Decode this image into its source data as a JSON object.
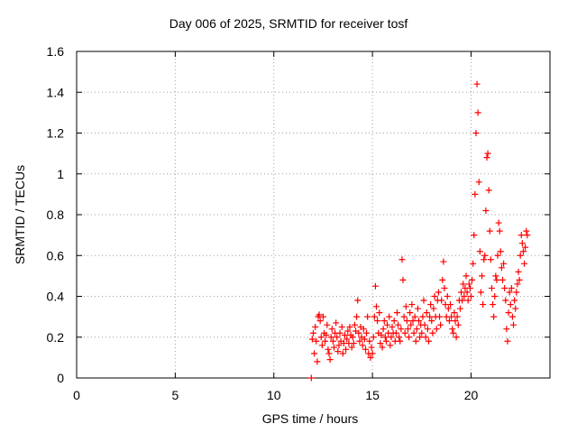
{
  "chart_data": {
    "type": "scatter",
    "title": "Day 006 of 2025, SRMTID for receiver tosf",
    "xlabel": "GPS time / hours",
    "ylabel": "SRMTID / TECUs",
    "xlim": [
      0,
      24
    ],
    "ylim": [
      0,
      1.6
    ],
    "xticks": [
      0,
      5,
      10,
      15,
      20
    ],
    "yticks": [
      0,
      0.2,
      0.4,
      0.6,
      0.8,
      1,
      1.2,
      1.4,
      1.6
    ],
    "xtick_labels": [
      "0",
      "5",
      "10",
      "15",
      "20"
    ],
    "ytick_labels": [
      "0",
      "0.2",
      "0.4",
      "0.6",
      "0.8",
      "1",
      "1.2",
      "1.4",
      "1.6"
    ],
    "grid": true,
    "marker": "+",
    "color": "#ff0000",
    "series": [
      {
        "name": "tosf",
        "points": [
          [
            11.9,
            0.0
          ],
          [
            11.95,
            0.19
          ],
          [
            12.0,
            0.22
          ],
          [
            12.05,
            0.12
          ],
          [
            12.1,
            0.25
          ],
          [
            12.15,
            0.18
          ],
          [
            12.2,
            0.08
          ],
          [
            12.25,
            0.3
          ],
          [
            12.3,
            0.31
          ],
          [
            12.35,
            0.28
          ],
          [
            12.4,
            0.2
          ],
          [
            12.45,
            0.16
          ],
          [
            12.5,
            0.3
          ],
          [
            12.55,
            0.22
          ],
          [
            12.6,
            0.18
          ],
          [
            12.65,
            0.21
          ],
          [
            12.7,
            0.26
          ],
          [
            12.75,
            0.14
          ],
          [
            12.8,
            0.12
          ],
          [
            12.85,
            0.09
          ],
          [
            12.9,
            0.2
          ],
          [
            12.95,
            0.24
          ],
          [
            13.0,
            0.18
          ],
          [
            13.05,
            0.15
          ],
          [
            13.1,
            0.22
          ],
          [
            13.15,
            0.27
          ],
          [
            13.2,
            0.2
          ],
          [
            13.25,
            0.13
          ],
          [
            13.3,
            0.16
          ],
          [
            13.35,
            0.22
          ],
          [
            13.4,
            0.18
          ],
          [
            13.45,
            0.25
          ],
          [
            13.5,
            0.12
          ],
          [
            13.55,
            0.17
          ],
          [
            13.6,
            0.21
          ],
          [
            13.65,
            0.14
          ],
          [
            13.7,
            0.19
          ],
          [
            13.75,
            0.23
          ],
          [
            13.8,
            0.17
          ],
          [
            13.85,
            0.25
          ],
          [
            13.9,
            0.21
          ],
          [
            13.95,
            0.15
          ],
          [
            14.0,
            0.2
          ],
          [
            14.05,
            0.17
          ],
          [
            14.1,
            0.26
          ],
          [
            14.15,
            0.23
          ],
          [
            14.2,
            0.3
          ],
          [
            14.25,
            0.38
          ],
          [
            14.3,
            0.22
          ],
          [
            14.35,
            0.18
          ],
          [
            14.4,
            0.25
          ],
          [
            14.45,
            0.2
          ],
          [
            14.5,
            0.16
          ],
          [
            14.55,
            0.24
          ],
          [
            14.6,
            0.19
          ],
          [
            14.65,
            0.14
          ],
          [
            14.7,
            0.22
          ],
          [
            14.75,
            0.3
          ],
          [
            14.8,
            0.12
          ],
          [
            14.85,
            0.18
          ],
          [
            14.9,
            0.1
          ],
          [
            14.95,
            0.15
          ],
          [
            15.0,
            0.12
          ],
          [
            15.05,
            0.2
          ],
          [
            15.1,
            0.3
          ],
          [
            15.15,
            0.45
          ],
          [
            15.2,
            0.35
          ],
          [
            15.25,
            0.28
          ],
          [
            15.3,
            0.22
          ],
          [
            15.35,
            0.32
          ],
          [
            15.4,
            0.17
          ],
          [
            15.45,
            0.21
          ],
          [
            15.5,
            0.15
          ],
          [
            15.55,
            0.24
          ],
          [
            15.6,
            0.28
          ],
          [
            15.65,
            0.2
          ],
          [
            15.7,
            0.18
          ],
          [
            15.75,
            0.26
          ],
          [
            15.8,
            0.22
          ],
          [
            15.85,
            0.3
          ],
          [
            15.9,
            0.16
          ],
          [
            15.95,
            0.2
          ],
          [
            16.0,
            0.25
          ],
          [
            16.05,
            0.22
          ],
          [
            16.1,
            0.28
          ],
          [
            16.15,
            0.18
          ],
          [
            16.2,
            0.22
          ],
          [
            16.25,
            0.32
          ],
          [
            16.3,
            0.26
          ],
          [
            16.35,
            0.2
          ],
          [
            16.4,
            0.18
          ],
          [
            16.45,
            0.24
          ],
          [
            16.5,
            0.58
          ],
          [
            16.55,
            0.48
          ],
          [
            16.6,
            0.3
          ],
          [
            16.65,
            0.22
          ],
          [
            16.7,
            0.35
          ],
          [
            16.75,
            0.28
          ],
          [
            16.8,
            0.24
          ],
          [
            16.85,
            0.2
          ],
          [
            16.9,
            0.32
          ],
          [
            16.95,
            0.26
          ],
          [
            17.0,
            0.36
          ],
          [
            17.05,
            0.28
          ],
          [
            17.1,
            0.22
          ],
          [
            17.15,
            0.3
          ],
          [
            17.2,
            0.18
          ],
          [
            17.25,
            0.24
          ],
          [
            17.3,
            0.34
          ],
          [
            17.35,
            0.28
          ],
          [
            17.4,
            0.2
          ],
          [
            17.45,
            0.26
          ],
          [
            17.5,
            0.22
          ],
          [
            17.55,
            0.3
          ],
          [
            17.6,
            0.38
          ],
          [
            17.65,
            0.26
          ],
          [
            17.7,
            0.2
          ],
          [
            17.75,
            0.32
          ],
          [
            17.8,
            0.24
          ],
          [
            17.85,
            0.18
          ],
          [
            17.9,
            0.3
          ],
          [
            17.95,
            0.36
          ],
          [
            18.0,
            0.28
          ],
          [
            18.05,
            0.22
          ],
          [
            18.1,
            0.34
          ],
          [
            18.15,
            0.4
          ],
          [
            18.2,
            0.3
          ],
          [
            18.25,
            0.24
          ],
          [
            18.3,
            0.38
          ],
          [
            18.35,
            0.42
          ],
          [
            18.4,
            0.3
          ],
          [
            18.45,
            0.26
          ],
          [
            18.5,
            0.38
          ],
          [
            18.55,
            0.48
          ],
          [
            18.6,
            0.57
          ],
          [
            18.65,
            0.44
          ],
          [
            18.7,
            0.36
          ],
          [
            18.75,
            0.3
          ],
          [
            18.8,
            0.4
          ],
          [
            18.85,
            0.34
          ],
          [
            18.9,
            0.28
          ],
          [
            18.95,
            0.36
          ],
          [
            19.0,
            0.3
          ],
          [
            19.05,
            0.24
          ],
          [
            19.1,
            0.22
          ],
          [
            19.15,
            0.32
          ],
          [
            19.2,
            0.28
          ],
          [
            19.25,
            0.2
          ],
          [
            19.3,
            0.3
          ],
          [
            19.35,
            0.26
          ],
          [
            19.4,
            0.38
          ],
          [
            19.45,
            0.34
          ],
          [
            19.5,
            0.42
          ],
          [
            19.55,
            0.38
          ],
          [
            19.6,
            0.46
          ],
          [
            19.65,
            0.4
          ],
          [
            19.7,
            0.44
          ],
          [
            19.75,
            0.5
          ],
          [
            19.8,
            0.42
          ],
          [
            19.85,
            0.38
          ],
          [
            19.9,
            0.46
          ],
          [
            19.95,
            0.44
          ],
          [
            20.0,
            0.4
          ],
          [
            20.05,
            0.48
          ],
          [
            20.1,
            0.56
          ],
          [
            20.15,
            0.7
          ],
          [
            20.2,
            0.9
          ],
          [
            20.25,
            1.2
          ],
          [
            20.3,
            1.44
          ],
          [
            20.35,
            1.3
          ],
          [
            20.4,
            0.96
          ],
          [
            20.45,
            0.62
          ],
          [
            20.5,
            0.42
          ],
          [
            20.55,
            0.5
          ],
          [
            20.6,
            0.36
          ],
          [
            20.65,
            0.58
          ],
          [
            20.7,
            0.6
          ],
          [
            20.75,
            0.82
          ],
          [
            20.8,
            1.08
          ],
          [
            20.85,
            1.1
          ],
          [
            20.9,
            0.92
          ],
          [
            20.95,
            0.72
          ],
          [
            21.0,
            0.58
          ],
          [
            21.05,
            0.44
          ],
          [
            21.1,
            0.36
          ],
          [
            21.15,
            0.3
          ],
          [
            21.2,
            0.4
          ],
          [
            21.25,
            0.5
          ],
          [
            21.3,
            0.48
          ],
          [
            21.35,
            0.6
          ],
          [
            21.4,
            0.76
          ],
          [
            21.45,
            0.72
          ],
          [
            21.5,
            0.62
          ],
          [
            21.55,
            0.54
          ],
          [
            21.6,
            0.48
          ],
          [
            21.65,
            0.56
          ],
          [
            21.7,
            0.44
          ],
          [
            21.75,
            0.38
          ],
          [
            21.8,
            0.24
          ],
          [
            21.85,
            0.18
          ],
          [
            21.9,
            0.32
          ],
          [
            21.95,
            0.42
          ],
          [
            22.0,
            0.36
          ],
          [
            22.05,
            0.44
          ],
          [
            22.1,
            0.3
          ],
          [
            22.15,
            0.26
          ],
          [
            22.2,
            0.38
          ],
          [
            22.25,
            0.34
          ],
          [
            22.3,
            0.42
          ],
          [
            22.35,
            0.46
          ],
          [
            22.4,
            0.52
          ],
          [
            22.45,
            0.48
          ],
          [
            22.5,
            0.6
          ],
          [
            22.55,
            0.7
          ],
          [
            22.6,
            0.66
          ],
          [
            22.65,
            0.62
          ],
          [
            22.7,
            0.56
          ],
          [
            22.75,
            0.64
          ],
          [
            22.8,
            0.72
          ],
          [
            22.85,
            0.7
          ]
        ]
      }
    ]
  }
}
